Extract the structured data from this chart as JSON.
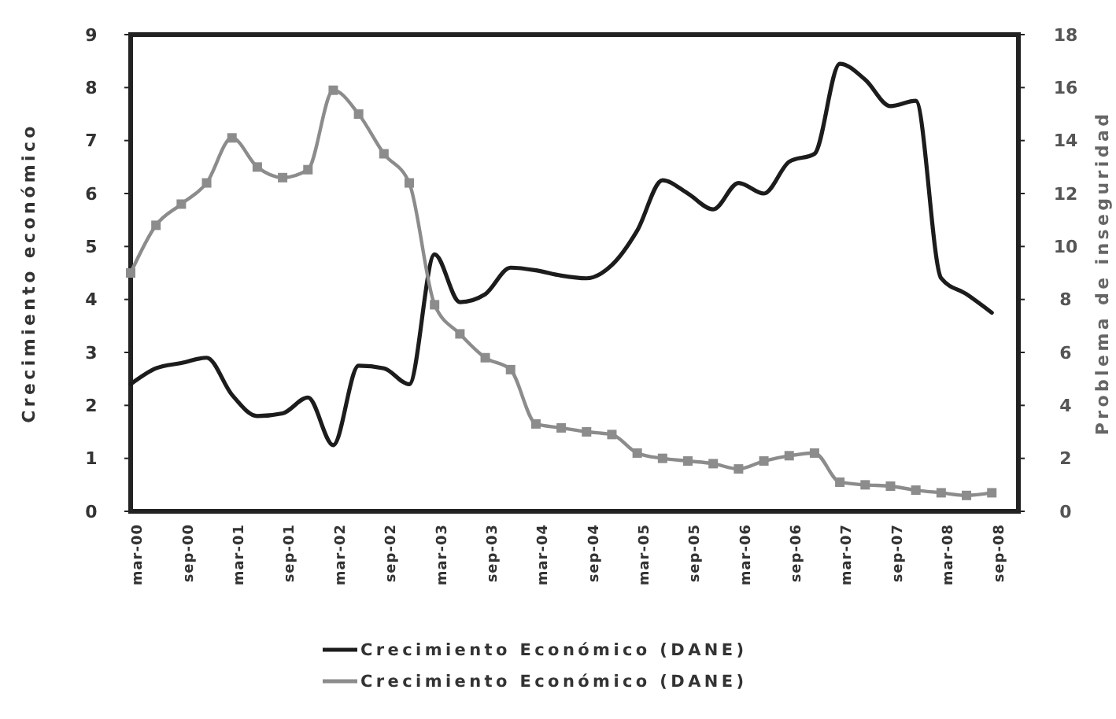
{
  "chart_data": {
    "type": "line",
    "ylabel": "Crecimiento económico",
    "y2label": "Problema de inseguridad",
    "categories": [
      "mar-00",
      null,
      "sep-00",
      null,
      "mar-01",
      null,
      "sep-01",
      null,
      "mar-02",
      null,
      "sep-02",
      null,
      "mar-03",
      null,
      "sep-03",
      null,
      "mar-04",
      null,
      "sep-04",
      null,
      "mar-05",
      null,
      "sep-05",
      null,
      "mar-06",
      null,
      "sep-06",
      null,
      "mar-07",
      null,
      "sep-07",
      null,
      "mar-08",
      null,
      "sep-08"
    ],
    "ylim": [
      0,
      9
    ],
    "yticks": [
      0,
      1,
      2,
      3,
      4,
      5,
      6,
      7,
      8,
      9
    ],
    "y2lim": [
      0,
      18
    ],
    "y2ticks": [
      0,
      2,
      4,
      6,
      8,
      10,
      12,
      14,
      16,
      18
    ],
    "legend": "bottom",
    "series": [
      {
        "name": "Crecimiento Económico (DANE)",
        "color": "#1c1c1c",
        "marker": "none",
        "values": [
          2.4,
          2.7,
          2.8,
          2.9,
          2.2,
          1.8,
          1.85,
          2.15,
          1.25,
          2.75,
          2.7,
          2.4,
          4.85,
          3.95,
          4.1,
          4.6,
          4.55,
          4.45,
          4.4,
          4.65,
          5.3,
          6.25,
          6.0,
          5.7,
          6.2,
          6.0,
          6.6,
          6.75,
          8.45,
          8.15,
          7.65,
          7.75,
          4.4,
          4.1,
          3.75
        ]
      },
      {
        "name": "Crecimiento Económico (DANE)",
        "color": "#8c8c8c",
        "marker": "square",
        "axis": "y2",
        "values": [
          9.0,
          10.8,
          11.6,
          12.4,
          14.1,
          13.0,
          12.6,
          12.9,
          15.9,
          15.0,
          13.5,
          12.4,
          7.8,
          6.7,
          5.8,
          5.35,
          3.3,
          3.15,
          3.0,
          2.9,
          2.2,
          2.0,
          1.9,
          1.8,
          1.6,
          1.9,
          2.1,
          2.2,
          1.1,
          1.0,
          0.95,
          0.8,
          0.7,
          0.6,
          0.7
        ]
      }
    ]
  }
}
